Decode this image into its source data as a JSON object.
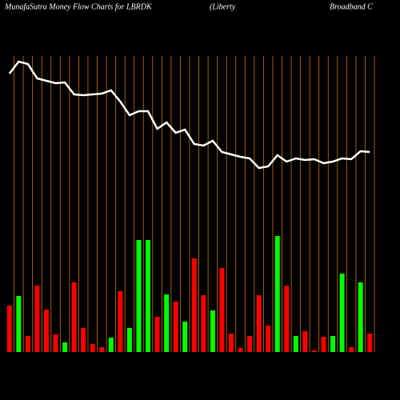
{
  "chart_data": {
    "type": "bar-line",
    "title": "MunafaSutra  Money Flow  Charts for LBRDK",
    "subtitle": "(Liberty",
    "subtitle_right": "Broadband C",
    "categories": [
      null,
      null,
      null,
      null,
      null,
      null,
      null,
      null,
      null,
      null,
      null,
      null,
      null,
      null,
      null,
      null,
      null,
      null,
      null,
      null,
      null,
      null,
      null,
      null,
      null,
      null,
      null,
      null,
      null,
      null,
      null,
      null,
      null,
      null,
      null,
      null,
      null,
      null,
      null,
      null
    ],
    "ylim": [
      0,
      440
    ],
    "grid_color": "#c87800",
    "bars": {
      "values": [
        58,
        70,
        20,
        83,
        53,
        22,
        12,
        87,
        30,
        10,
        6,
        18,
        76,
        30,
        140,
        140,
        44,
        72,
        63,
        38,
        117,
        71,
        52,
        105,
        23,
        5,
        20,
        71,
        33,
        145,
        83,
        20,
        26,
        2,
        19,
        20,
        98,
        6,
        87,
        23
      ],
      "colors": [
        "#ff0000",
        "#00ff00",
        "#ff0000",
        "#ff0000",
        "#ff0000",
        "#ff0000",
        "#00ff00",
        "#ff0000",
        "#ff0000",
        "#ff0000",
        "#ff0000",
        "#00ff00",
        "#ff0000",
        "#00ff00",
        "#00ff00",
        "#00ff00",
        "#ff0000",
        "#00ff00",
        "#ff0000",
        "#00ff00",
        "#ff0000",
        "#ff0000",
        "#00ff00",
        "#ff0000",
        "#ff0000",
        "#ff0000",
        "#ff0000",
        "#ff0000",
        "#ff0000",
        "#00ff00",
        "#ff0000",
        "#00ff00",
        "#ff0000",
        "#ff0000",
        "#ff0000",
        "#00ff00",
        "#00ff00",
        "#ff0000",
        "#00ff00",
        "#ff0000"
      ]
    },
    "line": {
      "color": "#ffffff",
      "values": [
        348,
        363,
        360,
        342,
        339,
        336,
        337,
        322,
        321,
        322,
        323,
        327,
        313,
        296,
        301,
        301,
        279,
        287,
        274,
        278,
        260,
        258,
        264,
        250,
        247,
        244,
        242,
        230,
        232,
        246,
        238,
        242,
        240,
        241,
        236,
        238,
        242,
        241,
        251,
        250
      ]
    }
  }
}
